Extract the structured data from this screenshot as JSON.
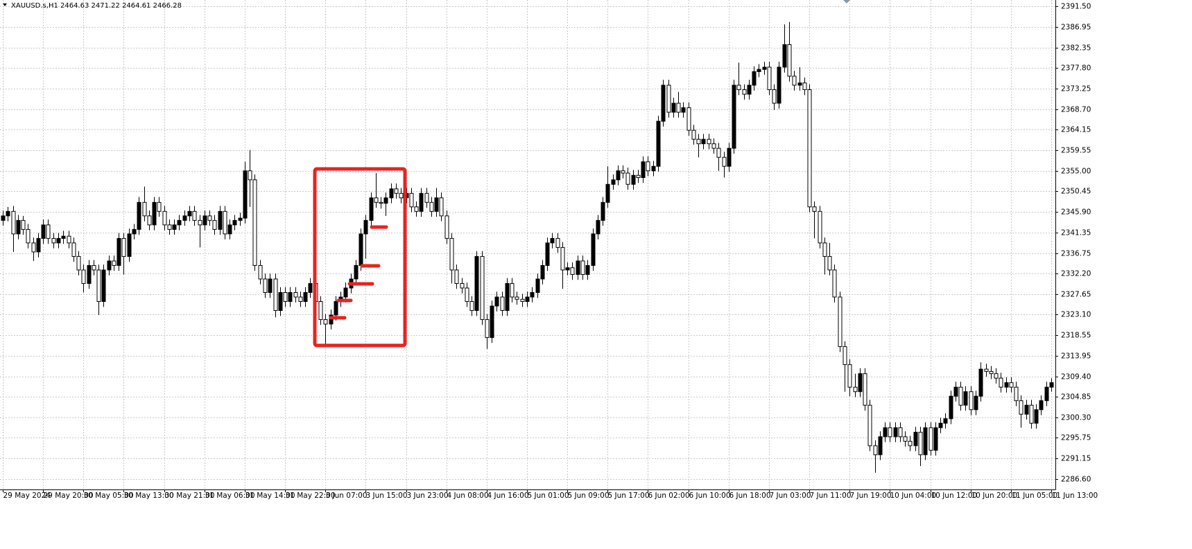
{
  "chart_data": {
    "type": "candlestick",
    "title": "XAUUSD.s,H1  2464.63 2471.22 2464.61 2466.28",
    "categories": [
      "29 May 2024",
      null,
      null,
      null,
      null,
      null,
      null,
      null,
      "29 May 20:00",
      null,
      null,
      null,
      null,
      null,
      null,
      null,
      "30 May 05:00",
      null,
      null,
      null,
      null,
      null,
      null,
      null,
      "30 May 13:00",
      null,
      null,
      null,
      null,
      null,
      null,
      null,
      "30 May 21:00",
      null,
      null,
      null,
      null,
      null,
      null,
      null,
      "31 May 06:00",
      null,
      null,
      null,
      null,
      null,
      null,
      null,
      "31 May 14:00",
      null,
      null,
      null,
      null,
      null,
      null,
      null,
      "31 May 22:00",
      null,
      null,
      null,
      null,
      null,
      null,
      null,
      "3 Jun 07:00",
      null,
      null,
      null,
      null,
      null,
      null,
      null,
      "3 Jun 15:00",
      null,
      null,
      null,
      null,
      null,
      null,
      null,
      "3 Jun 23:00",
      null,
      null,
      null,
      null,
      null,
      null,
      null,
      "4 Jun 08:00",
      null,
      null,
      null,
      null,
      null,
      null,
      null,
      "4 Jun 16:00",
      null,
      null,
      null,
      null,
      null,
      null,
      null,
      "5 Jun 01:00",
      null,
      null,
      null,
      null,
      null,
      null,
      null,
      "5 Jun 09:00",
      null,
      null,
      null,
      null,
      null,
      null,
      null,
      "5 Jun 17:00",
      null,
      null,
      null,
      null,
      null,
      null,
      null,
      "6 Jun 02:00",
      null,
      null,
      null,
      null,
      null,
      null,
      null,
      "6 Jun 10:00",
      null,
      null,
      null,
      null,
      null,
      null,
      null,
      "6 Jun 18:00",
      null,
      null,
      null,
      null,
      null,
      null,
      null,
      "7 Jun 03:00",
      null,
      null,
      null,
      null,
      null,
      null,
      null,
      "7 Jun 11:00",
      null,
      null,
      null,
      null,
      null,
      null,
      null,
      "7 Jun 19:00",
      null,
      null,
      null,
      null,
      null,
      null,
      null,
      "10 Jun 04:00",
      null,
      null,
      null,
      null,
      null,
      null,
      null,
      "10 Jun 12:00",
      null,
      null,
      null,
      null,
      null,
      null,
      null,
      "10 Jun 20:00",
      null,
      null,
      null,
      null,
      null,
      null,
      null,
      "11 Jun 05:00",
      null,
      null,
      null,
      null,
      null,
      null,
      null,
      "11 Jun 13:00"
    ],
    "open": [
      2344,
      2345,
      2346,
      2341,
      2344,
      2342,
      2339,
      2337,
      2340,
      2343,
      2340,
      2339,
      2340,
      2340.5,
      2339,
      2336,
      2333,
      2330,
      2334,
      2333,
      2326,
      2333,
      2335,
      2334,
      2340,
      2336,
      2341,
      2342,
      2348,
      2345,
      2343,
      2348,
      2346,
      2343,
      2342,
      2343,
      2344,
      2345,
      2346,
      2344,
      2343,
      2345,
      2344,
      2342,
      2346,
      2341,
      2343,
      2344,
      2344.5,
      2355,
      2353,
      2334,
      2331,
      2328,
      2331,
      2324,
      2328,
      2326,
      2328,
      2327,
      2326,
      2328,
      2330,
      2326,
      2322,
      2321,
      2323,
      2326,
      2327,
      2329,
      2331,
      2334,
      2341,
      2344,
      2349,
      2348,
      2347.8,
      2349,
      2351,
      2350,
      2349,
      2350,
      2347,
      2346,
      2350,
      2348,
      2346,
      2349,
      2345,
      2340,
      2333,
      2330,
      2329,
      2326,
      2324,
      2336,
      2322,
      2318,
      2325,
      2327,
      2324,
      2330,
      2327,
      2326.5,
      2326,
      2327,
      2328,
      2331,
      2334,
      2339,
      2340,
      2338,
      2333,
      2333.5,
      2332,
      2335,
      2332,
      2334,
      2341,
      2344,
      2348,
      2352,
      2353,
      2355,
      2354.5,
      2352,
      2354,
      2353.5,
      2357,
      2355,
      2356,
      2366,
      2374,
      2368,
      2370,
      2368,
      2369,
      2364,
      2362,
      2361,
      2362,
      2361,
      2360,
      2358,
      2356,
      2360,
      2374,
      2373,
      2372,
      2374,
      2377,
      2377.5,
      2378,
      2373,
      2370,
      2378,
      2383,
      2376,
      2374,
      2374.5,
      2373,
      2347,
      2346,
      2339,
      2336,
      2333,
      2327,
      2316,
      2312,
      2307,
      2306,
      2310,
      2303,
      2294,
      2292,
      2296,
      2298,
      2296,
      2298,
      2296,
      2295,
      2294,
      2297,
      2292,
      2298,
      2293,
      2298,
      2299,
      2300,
      2305,
      2307,
      2303,
      2306,
      2302,
      2305,
      2311,
      2310.5,
      2310,
      2309,
      2307,
      2308,
      2307,
      2304,
      2301,
      2303,
      2299,
      2302,
      2304,
      2307
    ],
    "high": [
      2346.2,
      2347,
      2347.2,
      2345.2,
      2345,
      2343.2,
      2340.2,
      2341.2,
      2344.2,
      2344.2,
      2341.2,
      2341.2,
      2341.7,
      2341.7,
      2340.2,
      2337.2,
      2334.2,
      2335.2,
      2335.2,
      2334.2,
      2334.2,
      2336.2,
      2336.2,
      2341.2,
      2341.2,
      2342.2,
      2343.2,
      2349.2,
      2351.5,
      2346.2,
      2349.2,
      2349.2,
      2347.2,
      2344.2,
      2344.2,
      2345.2,
      2346.2,
      2347.2,
      2347.2,
      2345.2,
      2346.2,
      2346.2,
      2345.2,
      2347.2,
      2347.2,
      2344.2,
      2345.2,
      2345.7,
      2357,
      2359.6,
      2354.2,
      2335.2,
      2332.2,
      2332.2,
      2332.2,
      2329.2,
      2329.2,
      2329.2,
      2329.2,
      2328.2,
      2329.2,
      2331.2,
      2331.2,
      2327.2,
      2323.2,
      2324.2,
      2327.2,
      2328.2,
      2330.2,
      2332.2,
      2335.2,
      2342.2,
      2345.2,
      2350.2,
      2354.5,
      2349.2,
      2350.2,
      2352.2,
      2352.2,
      2351.2,
      2351.2,
      2351.2,
      2348.2,
      2351.2,
      2351.2,
      2349.2,
      2351.2,
      2350.2,
      2346.2,
      2341.2,
      2334.2,
      2331.2,
      2330.2,
      2327.2,
      2337.2,
      2337.2,
      2323.2,
      2326.2,
      2328.2,
      2328.2,
      2331.2,
      2331.2,
      2328.2,
      2327.7,
      2328.2,
      2329.2,
      2332.2,
      2335.2,
      2340.2,
      2341.2,
      2341.2,
      2339.2,
      2334.7,
      2334.7,
      2336.2,
      2336.2,
      2335.2,
      2342.2,
      2345.2,
      2349.2,
      2356,
      2354.2,
      2356.2,
      2356.2,
      2355.7,
      2355.2,
      2355.2,
      2358.2,
      2358.2,
      2357.2,
      2367.2,
      2375.2,
      2375.2,
      2371.2,
      2372.5,
      2370.2,
      2370.2,
      2365.2,
      2363.2,
      2363.2,
      2363.2,
      2362.2,
      2361.2,
      2359.2,
      2361.2,
      2375.2,
      2379,
      2374.2,
      2375.2,
      2378.2,
      2378.7,
      2379.2,
      2379.2,
      2374.2,
      2379.2,
      2387.5,
      2388,
      2377.2,
      2378,
      2375.7,
      2374.2,
      2348.2,
      2347.2,
      2340.2,
      2339,
      2334.2,
      2328.2,
      2317.2,
      2313.2,
      2310,
      2311.2,
      2311.2,
      2304.2,
      2295.2,
      2297.2,
      2299.2,
      2299.2,
      2299.2,
      2299.2,
      2297.2,
      2296.2,
      2298.2,
      2298.2,
      2299.2,
      2299.2,
      2299.2,
      2300.2,
      2301.2,
      2306.2,
      2308.2,
      2308.2,
      2307.2,
      2307.2,
      2306.2,
      2312.5,
      2312.2,
      2311.7,
      2311.2,
      2310.2,
      2309.2,
      2309.2,
      2308.2,
      2305.2,
      2304.2,
      2304.2,
      2303.2,
      2305.2,
      2308.2,
      2309
    ],
    "low": [
      2342.8,
      2343.8,
      2337,
      2339.8,
      2340.8,
      2337.8,
      2335,
      2335.8,
      2338.8,
      2338.8,
      2337.8,
      2337.8,
      2338.8,
      2337.8,
      2334.8,
      2331.8,
      2328,
      2328.8,
      2331.8,
      2323,
      2324.8,
      2331.8,
      2332.8,
      2332.8,
      2332,
      2334.8,
      2339.8,
      2340.8,
      2343.8,
      2341.8,
      2341.8,
      2344.8,
      2341.8,
      2340.8,
      2340.8,
      2341.8,
      2342.8,
      2343.8,
      2342.8,
      2338,
      2341.8,
      2342.8,
      2340.8,
      2340.8,
      2339.8,
      2339.8,
      2341.8,
      2342.8,
      2343.3,
      2347,
      2332.8,
      2329.8,
      2326.8,
      2326.8,
      2322.5,
      2322.8,
      2324.8,
      2324.8,
      2325.8,
      2324.8,
      2324.8,
      2326.8,
      2324.8,
      2320.8,
      2316,
      2319.8,
      2321.8,
      2324.8,
      2325.8,
      2327.8,
      2329.8,
      2332.8,
      2335.5,
      2342.8,
      2346.8,
      2346.6,
      2345,
      2347.8,
      2348.8,
      2347.8,
      2347.8,
      2345.8,
      2344.8,
      2344.8,
      2346.8,
      2344.8,
      2344.8,
      2343.8,
      2338.8,
      2330,
      2328.8,
      2327.8,
      2324.8,
      2322.8,
      2322.8,
      2320.8,
      2315.5,
      2316.8,
      2323.8,
      2322.8,
      2322.8,
      2325.8,
      2325.3,
      2324.8,
      2324.8,
      2325.8,
      2326.8,
      2329.8,
      2332.8,
      2337.8,
      2336.8,
      2328.8,
      2331.8,
      2330.8,
      2330.8,
      2330.8,
      2330.8,
      2332.8,
      2339.8,
      2342.8,
      2346.8,
      2350.8,
      2351.8,
      2353.3,
      2350.8,
      2350.8,
      2352.3,
      2352.3,
      2353.8,
      2353.8,
      2354.8,
      2364.8,
      2366.8,
      2366.8,
      2366.8,
      2366.8,
      2362.8,
      2360.8,
      2358,
      2359.8,
      2359.8,
      2358.8,
      2355,
      2353.5,
      2354.8,
      2358.8,
      2371.8,
      2370.8,
      2370.8,
      2372.8,
      2375.8,
      2376.3,
      2371.8,
      2368.5,
      2368.8,
      2376.8,
      2374.8,
      2372.8,
      2372.8,
      2371.8,
      2345.8,
      2340,
      2337.8,
      2332,
      2331.8,
      2325.8,
      2314.8,
      2306,
      2305,
      2304.8,
      2304.8,
      2301.8,
      2292.8,
      2288,
      2290.8,
      2294.8,
      2294.8,
      2294.8,
      2294.8,
      2293.8,
      2292.8,
      2292.8,
      2289.5,
      2290.8,
      2291.8,
      2291.8,
      2296.8,
      2297.8,
      2298.8,
      2303.8,
      2301.8,
      2301.8,
      2300.8,
      2300.8,
      2303.8,
      2309.3,
      2308.8,
      2307.8,
      2305.8,
      2305.8,
      2305.8,
      2302.8,
      2298,
      2299.8,
      2297.8,
      2297.8,
      2300.8,
      2302.8,
      2306
    ],
    "close": [
      2345,
      2346,
      2341,
      2344,
      2342,
      2339,
      2337,
      2340,
      2343,
      2340,
      2339,
      2340,
      2340.5,
      2339,
      2336,
      2333,
      2330,
      2334,
      2333,
      2326,
      2333,
      2335,
      2334,
      2340,
      2336,
      2341,
      2342,
      2348,
      2345,
      2343,
      2348,
      2346,
      2343,
      2342,
      2343,
      2344,
      2345,
      2346,
      2344,
      2343,
      2345,
      2344,
      2342,
      2346,
      2341,
      2343,
      2344,
      2344.5,
      2355,
      2353,
      2334,
      2331,
      2328,
      2331,
      2324,
      2328,
      2326,
      2328,
      2327,
      2326,
      2328,
      2330,
      2326,
      2322,
      2321,
      2323,
      2326,
      2327,
      2329,
      2331,
      2334,
      2341,
      2344,
      2349,
      2348,
      2347.8,
      2349,
      2351,
      2350,
      2349,
      2350,
      2347,
      2346,
      2350,
      2348,
      2346,
      2349,
      2345,
      2340,
      2333,
      2330,
      2329,
      2326,
      2324,
      2336,
      2322,
      2318,
      2325,
      2327,
      2324,
      2330,
      2327,
      2326.5,
      2326,
      2327,
      2328,
      2331,
      2334,
      2339,
      2340,
      2338,
      2333,
      2333.5,
      2332,
      2335,
      2332,
      2334,
      2341,
      2344,
      2348,
      2352,
      2353,
      2355,
      2354.5,
      2352,
      2354,
      2353.5,
      2357,
      2355,
      2356,
      2366,
      2374,
      2368,
      2370,
      2368,
      2369,
      2364,
      2362,
      2361,
      2362,
      2361,
      2360,
      2358,
      2356,
      2360,
      2374,
      2373,
      2372,
      2374,
      2377,
      2377.5,
      2378,
      2373,
      2370,
      2378,
      2383,
      2376,
      2374,
      2374.5,
      2373,
      2347,
      2346,
      2339,
      2336,
      2333,
      2327,
      2316,
      2312,
      2307,
      2306,
      2310,
      2303,
      2294,
      2292,
      2296,
      2298,
      2296,
      2298,
      2296,
      2295,
      2294,
      2297,
      2292,
      2298,
      2293,
      2298,
      2299,
      2300,
      2305,
      2307,
      2303,
      2306,
      2302,
      2305,
      2311,
      2310.5,
      2310,
      2309,
      2307,
      2308,
      2307,
      2304,
      2301,
      2303,
      2299,
      2302,
      2304,
      2307,
      2308
    ],
    "up_color": "#000000",
    "down_color": "#ffffff",
    "outline_color": "#000000",
    "ylim": [
      2284.3,
      2392.9
    ],
    "yticks": [
      {
        "value": 2391.5,
        "label": "2391.50"
      },
      2386.95,
      2382.35,
      {
        "value": 2377.8,
        "label": "2377.80"
      },
      2373.25,
      {
        "value": 2368.7,
        "label": "2368.70"
      },
      2364.15,
      2359.55,
      {
        "value": 2355,
        "label": "2355.00"
      },
      2350.45,
      {
        "value": 2345.9,
        "label": "2345.90"
      },
      2341.35,
      2336.75,
      {
        "value": 2332.2,
        "label": "2332.20"
      },
      2327.65,
      {
        "value": 2323.1,
        "label": "2323.10"
      },
      2318.55,
      2313.95,
      {
        "value": 2309.4,
        "label": "2309.40"
      },
      2304.85,
      {
        "value": 2300.3,
        "label": "2300.30"
      },
      2295.75,
      2291.15,
      {
        "value": 2286.6,
        "label": "2286.60"
      }
    ],
    "grid": true
  }
}
